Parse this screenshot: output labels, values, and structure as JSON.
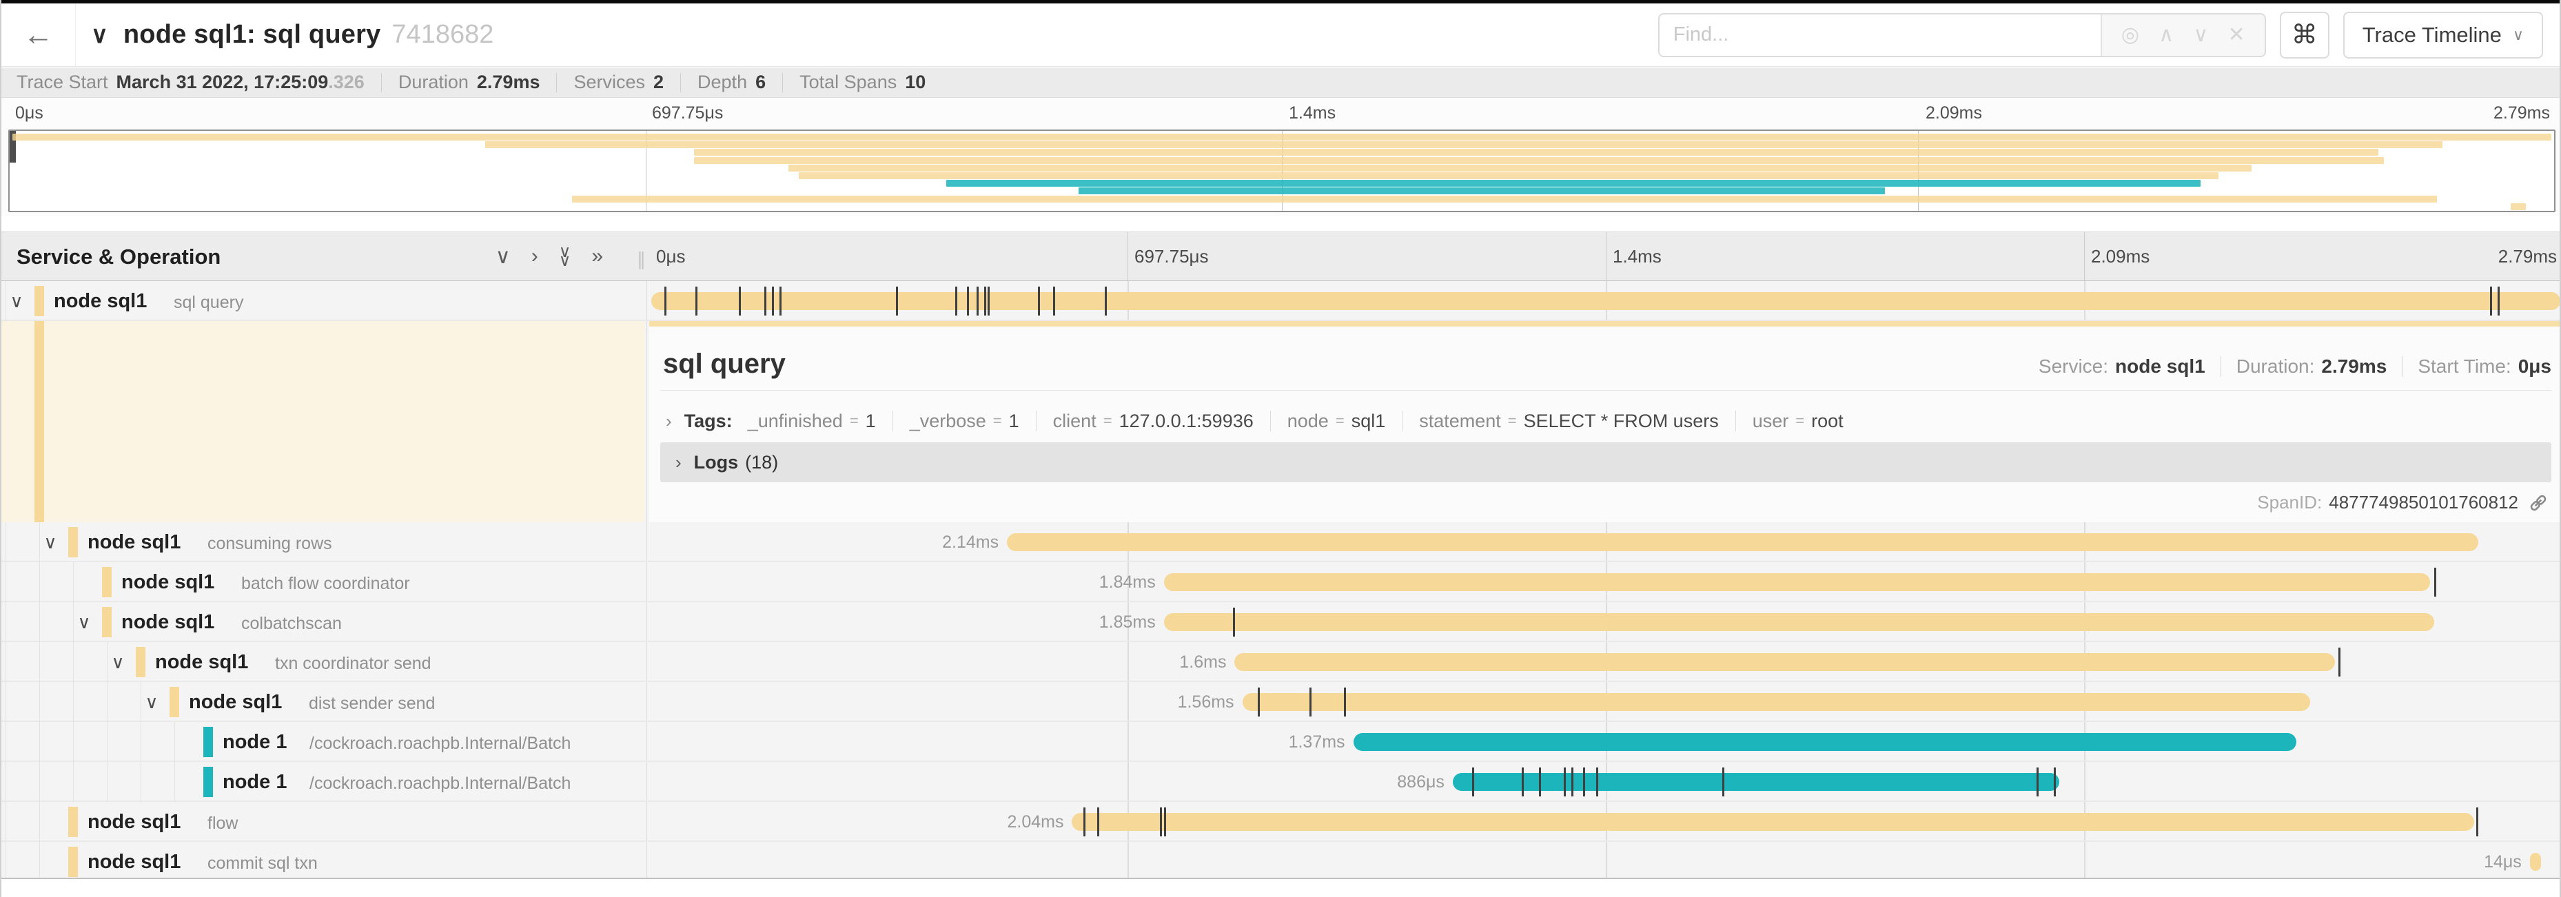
{
  "header": {
    "back_icon": "←",
    "collapse_icon": "∨",
    "title": "node sql1: sql query",
    "trace_id_short": "7418682",
    "find_placeholder": "Find...",
    "find_icons": {
      "locate": "◎",
      "prev": "∧",
      "next": "∨",
      "clear": "✕"
    },
    "shortcut_icon": "⌘",
    "view_select_label": "Trace Timeline",
    "view_select_caret": "∨"
  },
  "trace_stats": [
    {
      "label": "Trace Start",
      "value": "March 31 2022, 17:25:09",
      "suffix": ".326"
    },
    {
      "label": "Duration",
      "value": "2.79ms"
    },
    {
      "label": "Services",
      "value": "2"
    },
    {
      "label": "Depth",
      "value": "6"
    },
    {
      "label": "Total Spans",
      "value": "10"
    }
  ],
  "timeline_ticks": [
    "0μs",
    "697.75μs",
    "1.4ms",
    "2.09ms",
    "2.79ms"
  ],
  "tree_header": {
    "title": "Service & Operation",
    "icons": [
      "∨",
      "›",
      "∨∨",
      "»"
    ]
  },
  "colors": {
    "tan": "#f6d998",
    "teal": "#1bb5bb",
    "minimap_tan": "rgba(246,215,148,0.8)",
    "minimap_teal": "rgba(27,181,187,0.85)"
  },
  "chart_data": {
    "type": "bar",
    "title": "trace span timeline (percent of 2.79ms total)",
    "x_axis_ticks": [
      "0μs",
      "697.75μs",
      "1.4ms",
      "2.09ms",
      "2.79ms"
    ]
  },
  "spans": [
    {
      "service": "node sql1",
      "operation": "sql query",
      "depth": 0,
      "has_children": true,
      "color": "tan",
      "start_pct": 0.1,
      "end_pct": 99.9,
      "duration_label": "",
      "ticks_pct": [
        0.8,
        2.4,
        4.7,
        6.0,
        6.4,
        6.8,
        12.9,
        16.0,
        16.6,
        17.1,
        17.5,
        17.7,
        20.3,
        21.1,
        23.8,
        96.2,
        96.6
      ]
    },
    {
      "service": "node sql1",
      "operation": "consuming rows",
      "depth": 1,
      "has_children": true,
      "color": "tan",
      "start_pct": 18.7,
      "end_pct": 95.6,
      "duration_label": "2.14ms",
      "ticks_pct": []
    },
    {
      "service": "node sql1",
      "operation": "batch flow coordinator",
      "depth": 2,
      "has_children": false,
      "color": "tan",
      "start_pct": 26.9,
      "end_pct": 93.1,
      "duration_label": "1.84ms",
      "ticks_pct": [
        93.3
      ]
    },
    {
      "service": "node sql1",
      "operation": "colbatchscan",
      "depth": 2,
      "has_children": true,
      "color": "tan",
      "start_pct": 26.9,
      "end_pct": 93.3,
      "duration_label": "1.85ms",
      "ticks_pct": [
        30.5
      ]
    },
    {
      "service": "node sql1",
      "operation": "txn coordinator send",
      "depth": 3,
      "has_children": true,
      "color": "tan",
      "start_pct": 30.6,
      "end_pct": 88.1,
      "duration_label": "1.6ms",
      "ticks_pct": [
        88.3
      ]
    },
    {
      "service": "node sql1",
      "operation": "dist sender send",
      "depth": 4,
      "has_children": true,
      "color": "tan",
      "start_pct": 31.0,
      "end_pct": 86.8,
      "duration_label": "1.56ms",
      "ticks_pct": [
        31.8,
        34.5,
        36.3
      ]
    },
    {
      "service": "node 1",
      "operation": "/cockroach.roachpb.Internal/Batch",
      "depth": 5,
      "has_children": false,
      "color": "teal",
      "start_pct": 36.8,
      "end_pct": 86.1,
      "duration_label": "1.37ms",
      "ticks_pct": []
    },
    {
      "service": "node 1",
      "operation": "/cockroach.roachpb.Internal/Batch",
      "depth": 5,
      "has_children": false,
      "color": "teal",
      "start_pct": 42.0,
      "end_pct": 73.7,
      "duration_label": "886μs",
      "ticks_pct": [
        43.0,
        45.6,
        46.5,
        47.8,
        48.2,
        48.8,
        49.5,
        56.1,
        72.5,
        73.4
      ]
    },
    {
      "service": "node sql1",
      "operation": "flow",
      "depth": 1,
      "has_children": false,
      "color": "tan",
      "start_pct": 22.1,
      "end_pct": 95.4,
      "duration_label": "2.04ms",
      "ticks_pct": [
        22.7,
        23.4,
        26.7,
        26.9,
        95.5
      ]
    },
    {
      "service": "node sql1",
      "operation": "commit sql txn",
      "depth": 1,
      "has_children": false,
      "color": "tan",
      "start_pct": 98.3,
      "end_pct": 98.9,
      "duration_label": "14μs",
      "ticks_pct": []
    }
  ],
  "detail": {
    "title": "sql query",
    "service_label": "Service:",
    "service": "node sql1",
    "duration_label": "Duration:",
    "duration": "2.79ms",
    "start_label": "Start Time:",
    "start": "0μs",
    "tags_chevron": "›",
    "tags_label": "Tags:",
    "tags": [
      {
        "key": "_unfinished",
        "value": "1"
      },
      {
        "key": "_verbose",
        "value": "1"
      },
      {
        "key": "client",
        "value": "127.0.0.1:59936"
      },
      {
        "key": "node",
        "value": "sql1"
      },
      {
        "key": "statement",
        "value": "SELECT * FROM users"
      },
      {
        "key": "user",
        "value": "root"
      }
    ],
    "logs_chevron": "›",
    "logs_label": "Logs",
    "logs_count": "(18)",
    "span_id_label": "SpanID:",
    "span_id": "4877749850101760812"
  }
}
